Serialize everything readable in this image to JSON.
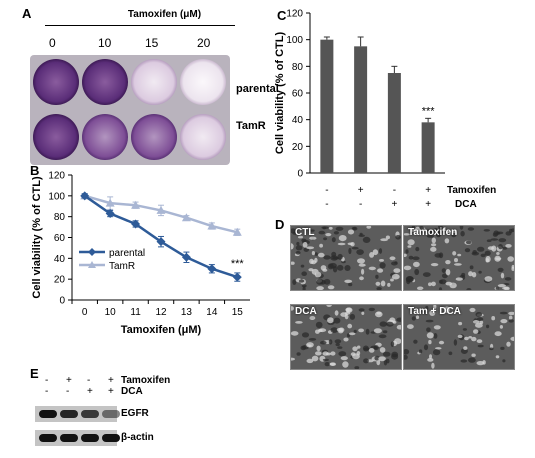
{
  "panel_a": {
    "label": "A",
    "title": "Tamoxifen (μM)",
    "doses": [
      "0",
      "10",
      "15",
      "20"
    ],
    "rows": [
      "parental",
      "TamR"
    ],
    "colors": {
      "stain_strong": "#5a2d78",
      "stain_mid": "#8a5aa0",
      "stain_light": "#d8c8dc",
      "plate": "#b9b3bd"
    }
  },
  "panel_b": {
    "label": "B",
    "significance": "***",
    "chart_data": {
      "type": "line",
      "x": [
        "0",
        "10",
        "11",
        "12",
        "13",
        "14",
        "15"
      ],
      "ylabel": "Cell viability (% of CTL)",
      "xlabel": "Tamoxifen (μM)",
      "ylim": [
        0,
        120
      ],
      "yticks": [
        0,
        20,
        40,
        60,
        80,
        100,
        120
      ],
      "legend": "bottom-left",
      "series": [
        {
          "name": "parental",
          "color": "#2e5b98",
          "marker": "diamond",
          "values": [
            100,
            83,
            73,
            56,
            41,
            30,
            22
          ],
          "errors": [
            2,
            3,
            3,
            5,
            5,
            4,
            4
          ]
        },
        {
          "name": "TamR",
          "color": "#a9b6d3",
          "marker": "triangle",
          "values": [
            100,
            93,
            91,
            86,
            79,
            71,
            65
          ],
          "errors": [
            2,
            6,
            3,
            5,
            2,
            3,
            3
          ]
        }
      ]
    }
  },
  "panel_c": {
    "label": "C",
    "significance": "***",
    "chart_data": {
      "type": "bar",
      "ylabel": "Cell viability (% of CTL)",
      "ylim": [
        0,
        120
      ],
      "yticks": [
        0,
        20,
        40,
        60,
        80,
        100,
        120
      ],
      "color": "#555555",
      "values": [
        100,
        95,
        75,
        38
      ],
      "errors": [
        2,
        7,
        5,
        3
      ],
      "conditions": [
        {
          "name": "Tamoxifen",
          "signs": [
            "-",
            "+",
            "-",
            "+"
          ]
        },
        {
          "name": "DCA",
          "signs": [
            "-",
            "-",
            "+",
            "+"
          ]
        }
      ]
    }
  },
  "panel_d": {
    "label": "D",
    "images": [
      "CTL",
      "Tamoxifen",
      "DCA",
      "Tam + DCA"
    ]
  },
  "panel_e": {
    "label": "E",
    "conditions": [
      {
        "name": "Tamoxifen",
        "signs": [
          "-",
          "+",
          "-",
          "+"
        ]
      },
      {
        "name": "DCA",
        "signs": [
          "-",
          "-",
          "+",
          "+"
        ]
      }
    ],
    "blots": [
      "EGFR",
      "β-actin"
    ],
    "band_intensity": [
      [
        1.0,
        0.85,
        0.7,
        0.35
      ],
      [
        1.0,
        1.0,
        1.0,
        1.0
      ]
    ]
  }
}
